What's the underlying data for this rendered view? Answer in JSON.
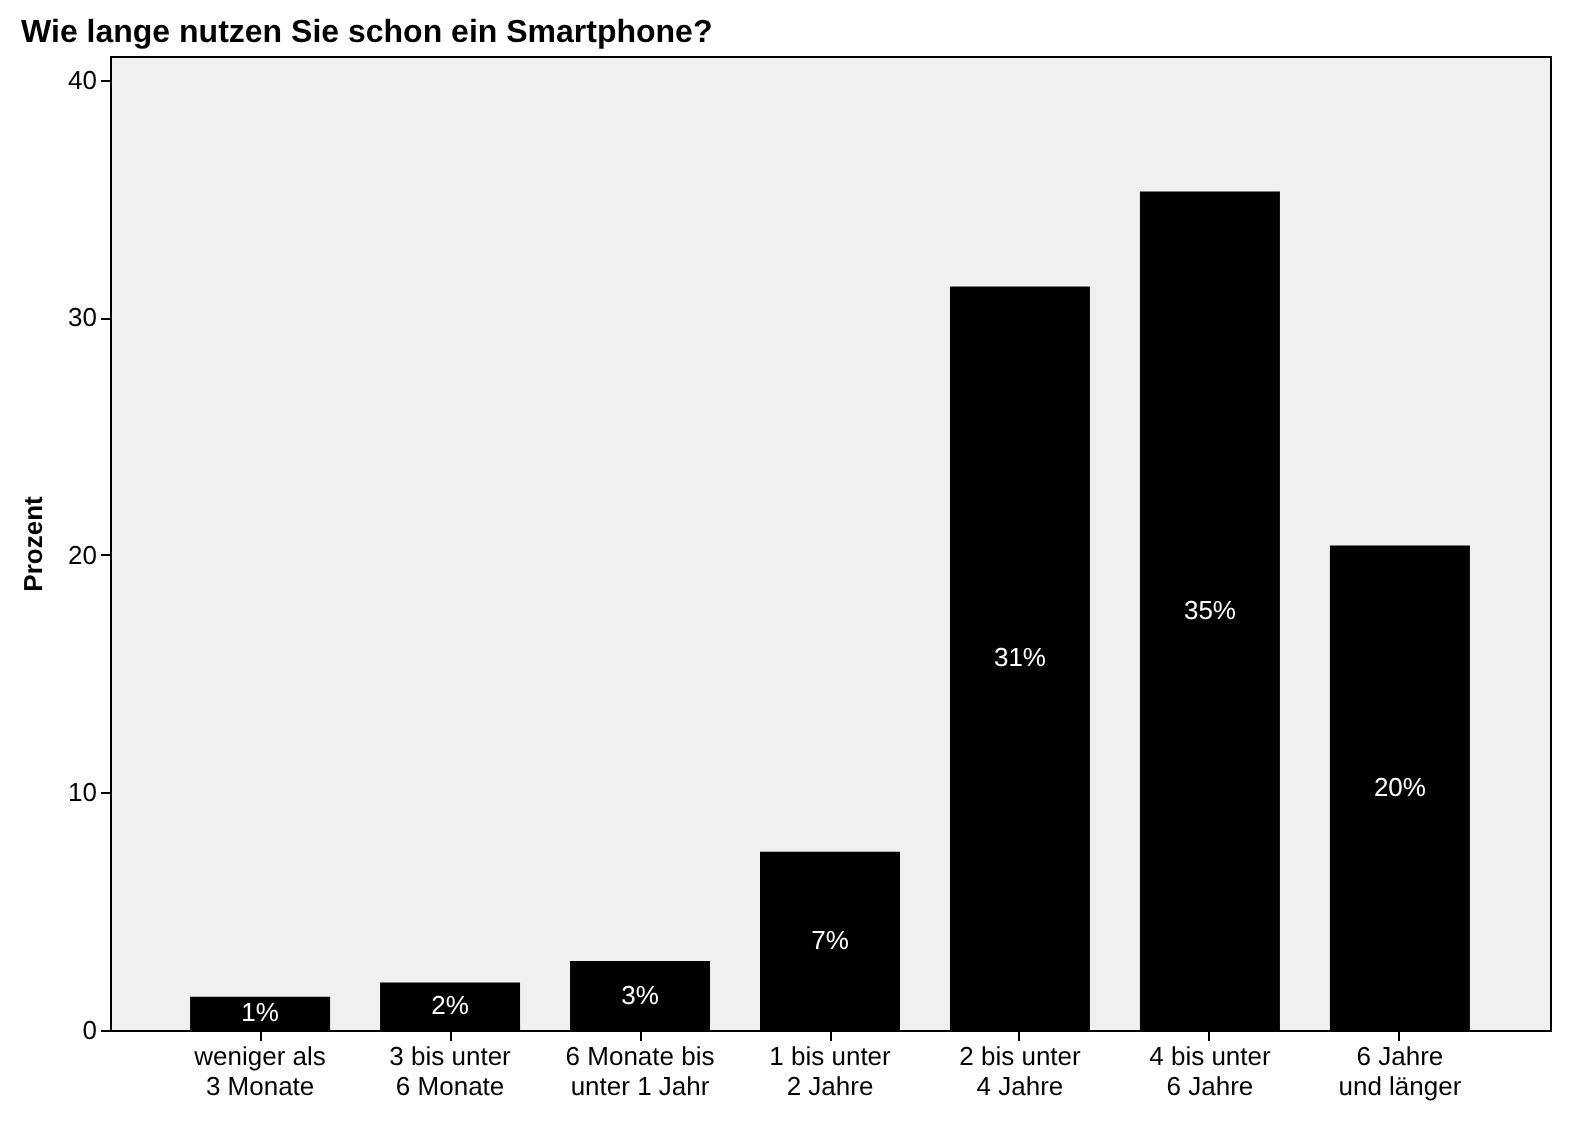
{
  "chart_data": {
    "type": "bar",
    "title": "Wie lange nutzen Sie schon ein Smartphone?",
    "ylabel": "Prozent",
    "categories": [
      "weniger als 3 Monate",
      "3 bis unter 6 Monate",
      "6 Monate bis unter 1 Jahr",
      "1 bis unter 2 Jahre",
      "2 bis unter 4 Jahre",
      "4 bis unter 6 Jahre",
      "6 Jahre und länger"
    ],
    "values": [
      1.4,
      2.0,
      2.9,
      7.5,
      31.3,
      35.3,
      20.4
    ],
    "value_labels": [
      "1%",
      "2%",
      "3%",
      "7%",
      "31%",
      "35%",
      "20%"
    ],
    "color": "#000000",
    "ylim": [
      0,
      41
    ],
    "yticks": [
      0,
      10,
      20,
      30,
      40
    ],
    "grid": false
  }
}
